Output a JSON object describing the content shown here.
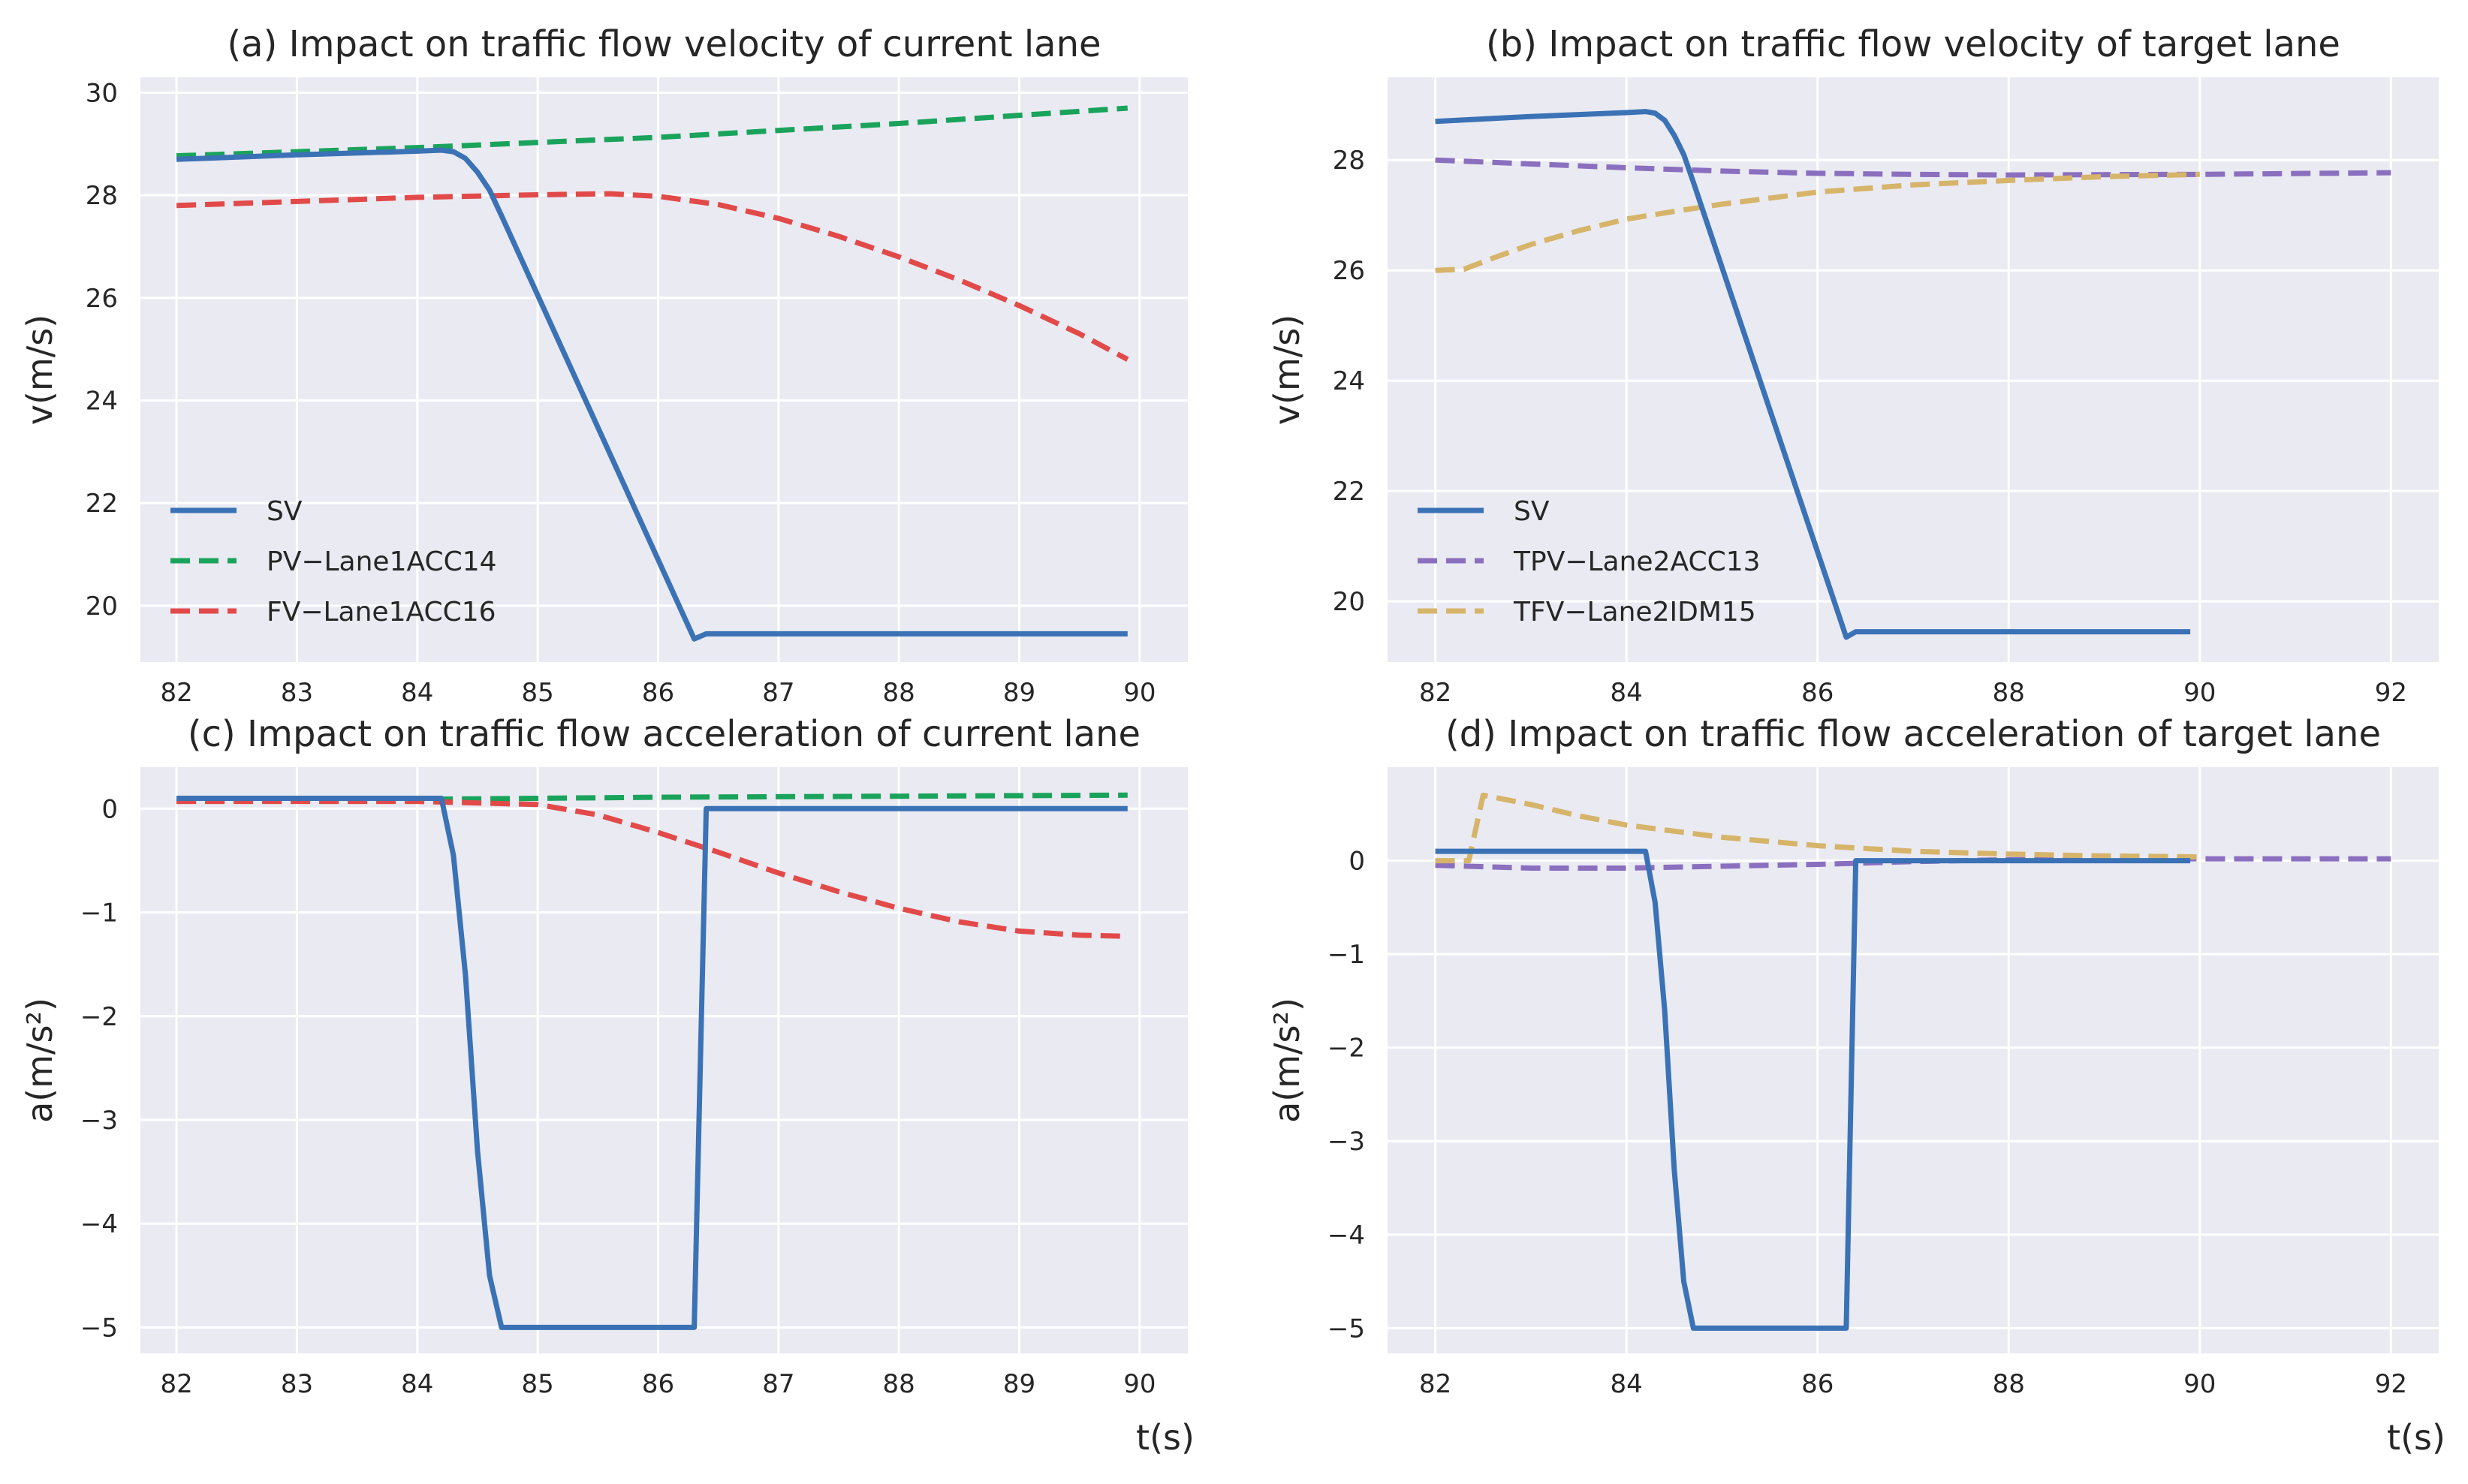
{
  "chart_data": [
    {
      "id": "a",
      "type": "line",
      "title": "(a) Impact on traffic flow velocity of current lane",
      "xlabel": "",
      "ylabel": "v(m/s)",
      "xlim": [
        81.7,
        90.4
      ],
      "ylim": [
        18.9,
        30.3
      ],
      "xticks": [
        82,
        83,
        84,
        85,
        86,
        87,
        88,
        89,
        90
      ],
      "yticks": [
        20,
        22,
        24,
        26,
        28,
        30
      ],
      "grid": true,
      "legend": "lower-left",
      "series": [
        {
          "name": "SV",
          "color": "#3a72b5",
          "dash": "solid",
          "x": [
            82,
            83,
            84,
            84.2,
            84.3,
            84.4,
            84.5,
            84.6,
            84.7,
            86.3,
            86.4,
            86.5,
            89.9
          ],
          "y": [
            28.7,
            28.79,
            28.86,
            28.88,
            28.85,
            28.72,
            28.45,
            28.1,
            27.6,
            19.35,
            19.45,
            19.45,
            19.45
          ]
        },
        {
          "name": "PV-Lane1ACC14",
          "color": "#1aa35b",
          "dash": "dashed",
          "x": [
            82,
            84,
            86,
            88,
            89.9
          ],
          "y": [
            28.77,
            28.93,
            29.13,
            29.4,
            29.7
          ]
        },
        {
          "name": "FV-Lane1ACC16",
          "color": "#e24a4a",
          "dash": "dashed",
          "x": [
            82,
            83,
            84,
            85,
            85.6,
            86,
            86.5,
            87,
            87.5,
            88,
            88.5,
            89,
            89.5,
            89.9
          ],
          "y": [
            27.8,
            27.88,
            27.96,
            28.01,
            28.03,
            27.98,
            27.82,
            27.55,
            27.2,
            26.8,
            26.35,
            25.85,
            25.3,
            24.8
          ]
        }
      ]
    },
    {
      "id": "b",
      "type": "line",
      "title": "(b) Impact on traffic flow velocity of target lane",
      "xlabel": "",
      "ylabel": "v(m/s)",
      "xlim": [
        81.5,
        92.5
      ],
      "ylim": [
        18.9,
        29.5
      ],
      "xticks": [
        82,
        84,
        86,
        88,
        90,
        92
      ],
      "yticks": [
        20,
        22,
        24,
        26,
        28
      ],
      "grid": true,
      "legend": "lower-left",
      "series": [
        {
          "name": "SV",
          "color": "#3a72b5",
          "dash": "solid",
          "x": [
            82,
            83,
            84,
            84.2,
            84.3,
            84.4,
            84.5,
            84.6,
            84.7,
            86.3,
            86.4,
            86.5,
            89.9
          ],
          "y": [
            28.7,
            28.79,
            28.86,
            28.88,
            28.85,
            28.72,
            28.45,
            28.1,
            27.6,
            19.35,
            19.45,
            19.45,
            19.45
          ]
        },
        {
          "name": "TPV-Lane2ACC13",
          "color": "#8b6fbf",
          "dash": "dashed",
          "x": [
            82,
            83,
            84,
            85,
            86,
            87,
            88,
            90,
            92
          ],
          "y": [
            28.0,
            27.93,
            27.86,
            27.8,
            27.76,
            27.74,
            27.73,
            27.74,
            27.77
          ]
        },
        {
          "name": "TFV-Lane2IDM15",
          "color": "#d6b46a",
          "dash": "dashed",
          "x": [
            82,
            82.3,
            82.6,
            83,
            83.5,
            84,
            84.5,
            85,
            86,
            87,
            88,
            89,
            90
          ],
          "y": [
            26.0,
            26.02,
            26.22,
            26.47,
            26.72,
            26.93,
            27.07,
            27.2,
            27.42,
            27.55,
            27.63,
            27.7,
            27.74
          ]
        }
      ]
    },
    {
      "id": "c",
      "type": "line",
      "title": "(c) Impact on traffic flow acceleration of current lane",
      "xlabel": "t(s)",
      "ylabel": "a(m/s²)",
      "xlim": [
        81.7,
        90.4
      ],
      "ylim": [
        -5.25,
        0.4
      ],
      "xticks": [
        82,
        83,
        84,
        85,
        86,
        87,
        88,
        89,
        90
      ],
      "yticks": [
        0,
        -1,
        -2,
        -3,
        -4,
        -5
      ],
      "grid": true,
      "legend": "none",
      "series": [
        {
          "name": "SV",
          "color": "#3a72b5",
          "dash": "solid",
          "x": [
            82,
            84.2,
            84.3,
            84.4,
            84.5,
            84.6,
            84.7,
            86.3,
            86.4,
            89.9
          ],
          "y": [
            0.1,
            0.1,
            -0.45,
            -1.6,
            -3.3,
            -4.5,
            -5.0,
            -5.0,
            0.0,
            0.0
          ]
        },
        {
          "name": "PV-Lane1ACC14",
          "color": "#1aa35b",
          "dash": "dashed",
          "x": [
            82,
            84,
            86,
            88,
            89.9
          ],
          "y": [
            0.07,
            0.09,
            0.11,
            0.12,
            0.13
          ]
        },
        {
          "name": "FV-Lane1ACC16",
          "color": "#e24a4a",
          "dash": "dashed",
          "x": [
            82,
            83,
            84,
            85,
            85.5,
            86,
            86.5,
            87,
            87.5,
            88,
            88.5,
            89,
            89.5,
            89.9
          ],
          "y": [
            0.07,
            0.07,
            0.07,
            0.04,
            -0.06,
            -0.23,
            -0.42,
            -0.62,
            -0.8,
            -0.96,
            -1.09,
            -1.18,
            -1.22,
            -1.23
          ]
        }
      ]
    },
    {
      "id": "d",
      "type": "line",
      "title": "(d) Impact on traffic flow acceleration of target lane",
      "xlabel": "t(s)",
      "ylabel": "a(m/s²)",
      "xlim": [
        81.5,
        92.5
      ],
      "ylim": [
        -5.27,
        1.0
      ],
      "xticks": [
        82,
        84,
        86,
        88,
        90,
        92
      ],
      "yticks": [
        0,
        -1,
        -2,
        -3,
        -4,
        -5
      ],
      "grid": true,
      "legend": "none",
      "series": [
        {
          "name": "SV",
          "color": "#3a72b5",
          "dash": "solid",
          "x": [
            82,
            84.2,
            84.3,
            84.4,
            84.5,
            84.6,
            84.7,
            86.3,
            86.4,
            89.9
          ],
          "y": [
            0.1,
            0.1,
            -0.45,
            -1.6,
            -3.3,
            -4.5,
            -5.0,
            -5.0,
            0.0,
            0.0
          ]
        },
        {
          "name": "TPV-Lane2ACC13",
          "color": "#8b6fbf",
          "dash": "dashed",
          "x": [
            82,
            83,
            84,
            85,
            86,
            87,
            88,
            90,
            92
          ],
          "y": [
            -0.05,
            -0.08,
            -0.08,
            -0.06,
            -0.04,
            -0.01,
            0.01,
            0.02,
            0.02
          ]
        },
        {
          "name": "TFV-Lane2IDM15",
          "color": "#d6b46a",
          "dash": "dashed",
          "x": [
            82,
            82.35,
            82.5,
            83,
            83.5,
            84,
            85,
            86,
            87,
            88,
            89,
            90
          ],
          "y": [
            0.0,
            0.0,
            0.7,
            0.6,
            0.48,
            0.38,
            0.25,
            0.16,
            0.1,
            0.07,
            0.05,
            0.04
          ]
        }
      ]
    }
  ]
}
